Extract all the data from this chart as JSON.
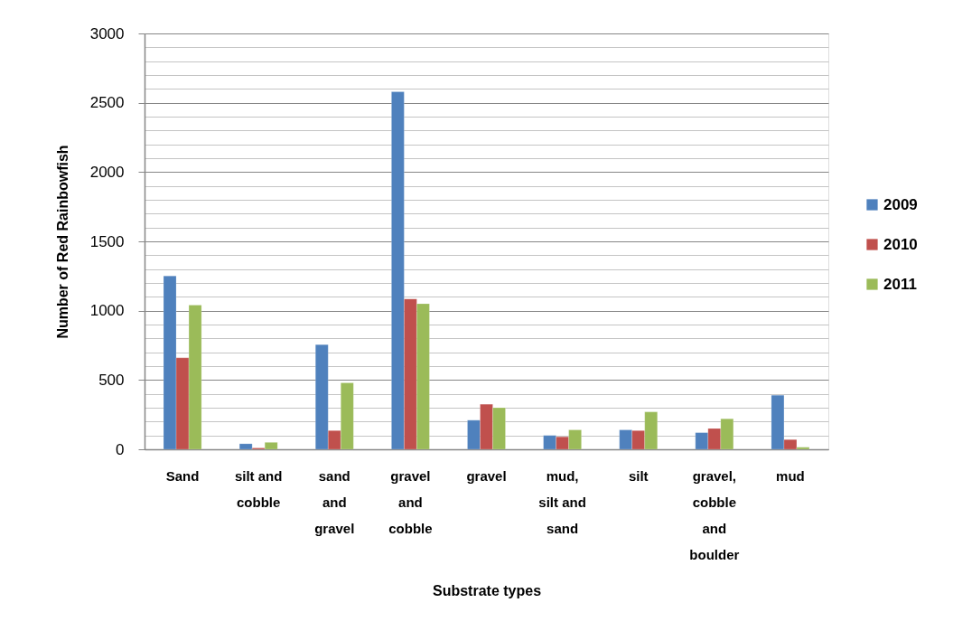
{
  "chart_data": {
    "type": "bar",
    "xlabel": "Substrate types",
    "ylabel": "Number of Red Rainbowfish",
    "categories": [
      "Sand",
      "silt and cobble",
      "sand and gravel",
      "gravel and cobble",
      "gravel",
      "mud, silt and sand",
      "silt",
      "gravel, cobble and boulder",
      "mud"
    ],
    "series": [
      {
        "name": "2009",
        "color": "#4f81bd",
        "values": [
          1250,
          40,
          755,
          2580,
          210,
          100,
          140,
          120,
          390
        ]
      },
      {
        "name": "2010",
        "color": "#c0504d",
        "values": [
          660,
          10,
          135,
          1085,
          325,
          90,
          135,
          150,
          70
        ]
      },
      {
        "name": "2011",
        "color": "#9bbb59",
        "values": [
          1040,
          50,
          480,
          1050,
          300,
          140,
          270,
          220,
          15
        ]
      }
    ],
    "ylim": [
      0,
      3000
    ],
    "yticks": [
      0,
      {
        "value": 100,
        "label": null
      },
      {
        "value": 200,
        "label": null
      },
      {
        "value": 300,
        "label": null
      },
      {
        "value": 400,
        "label": null
      },
      500,
      {
        "value": 600,
        "label": null
      },
      {
        "value": 700,
        "label": null
      },
      {
        "value": 800,
        "label": null
      },
      {
        "value": 900,
        "label": null
      },
      1000,
      {
        "value": 1100,
        "label": null
      },
      {
        "value": 1200,
        "label": null
      },
      {
        "value": 1300,
        "label": null
      },
      {
        "value": 1400,
        "label": null
      },
      1500,
      {
        "value": 1600,
        "label": null
      },
      {
        "value": 1700,
        "label": null
      },
      {
        "value": 1800,
        "label": null
      },
      {
        "value": 1900,
        "label": null
      },
      2000,
      {
        "value": 2100,
        "label": null
      },
      {
        "value": 2200,
        "label": null
      },
      {
        "value": 2300,
        "label": null
      },
      {
        "value": 2400,
        "label": null
      },
      2500,
      {
        "value": 2600,
        "label": null
      },
      {
        "value": 2700,
        "label": null
      },
      {
        "value": 2800,
        "label": null
      },
      {
        "value": 2900,
        "label": null
      },
      3000
    ],
    "grid": "y",
    "legend": "right"
  }
}
